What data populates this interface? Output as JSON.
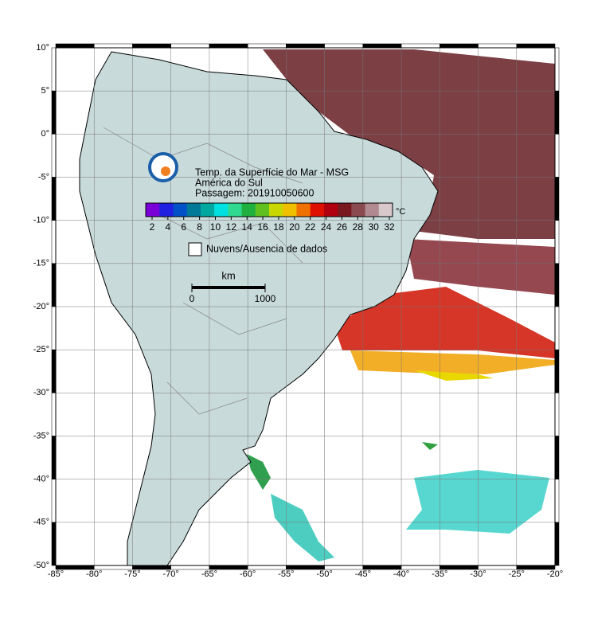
{
  "map": {
    "title": [
      "Temp. da Superfície do Mar - MSG",
      "América do Sul",
      "Passagem: 201910050600"
    ],
    "xlim": [
      -85,
      -20
    ],
    "ylim": [
      -50,
      10
    ],
    "xticks": [
      {
        "value": -85,
        "label": "-85°"
      },
      {
        "value": -80,
        "label": "-80°"
      },
      {
        "value": -75,
        "label": "-75°"
      },
      {
        "value": -70,
        "label": "-70°"
      },
      {
        "value": -65,
        "label": "-65°"
      },
      {
        "value": -60,
        "label": "-60°"
      },
      {
        "value": -55,
        "label": "-55°"
      },
      {
        "value": -50,
        "label": "-50°"
      },
      {
        "value": -45,
        "label": "-45°"
      },
      {
        "value": -40,
        "label": "-40°"
      },
      {
        "value": -35,
        "label": "-35°"
      },
      {
        "value": -30,
        "label": "-30°"
      },
      {
        "value": -25,
        "label": "-25°"
      },
      {
        "value": -20,
        "label": "-20°"
      }
    ],
    "yticks": [
      {
        "value": 10,
        "label": "10°"
      },
      {
        "value": 5,
        "label": "5°"
      },
      {
        "value": 0,
        "label": "0°"
      },
      {
        "value": -5,
        "label": "-5°"
      },
      {
        "value": -10,
        "label": "-10°"
      },
      {
        "value": -15,
        "label": "-15°"
      },
      {
        "value": -20,
        "label": "-20°"
      },
      {
        "value": -25,
        "label": "-25°"
      },
      {
        "value": -30,
        "label": "-30°"
      },
      {
        "value": -35,
        "label": "-35°"
      },
      {
        "value": -40,
        "label": "-40°"
      },
      {
        "value": -45,
        "label": "-45°"
      },
      {
        "value": -50,
        "label": "-50°"
      }
    ],
    "grid": true,
    "colorbar": {
      "unit": "°C",
      "lim": [
        1.2,
        32.4
      ],
      "ticks": [
        2,
        4,
        6,
        8,
        10,
        12,
        14,
        16,
        18,
        20,
        22,
        24,
        26,
        28,
        30,
        32
      ],
      "colors": [
        "#7a00d8",
        "#2020e0",
        "#0050c8",
        "#007898",
        "#00a8a0",
        "#00e0e0",
        "#30d890",
        "#20b040",
        "#60c020",
        "#c8d800",
        "#f0c000",
        "#f07000",
        "#e01000",
        "#b00010",
        "#7a1820",
        "#8a4a50",
        "#b08a90",
        "#d8c8cc"
      ]
    },
    "legend": "Nuvens/Ausencia de dados",
    "scale": {
      "unit": "km",
      "ticks": [
        0,
        1000
      ]
    }
  }
}
